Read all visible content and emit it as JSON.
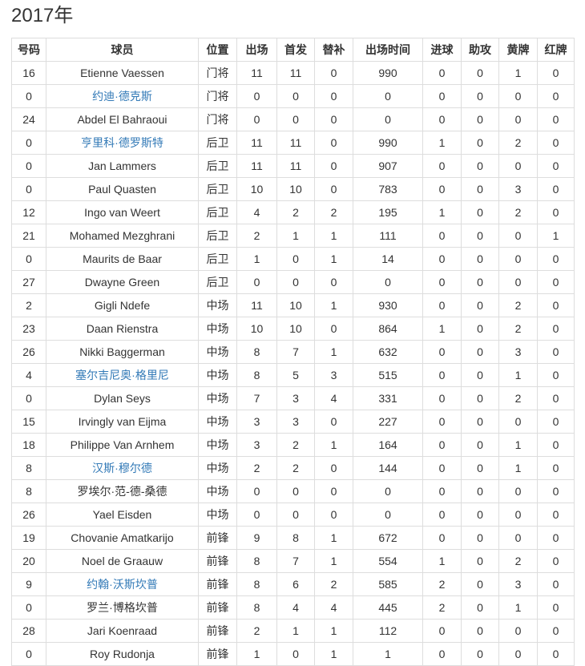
{
  "page": {
    "title": "2017年"
  },
  "colors": {
    "link": "#337ab7",
    "border": "#ddd",
    "text": "#333",
    "background": "#ffffff"
  },
  "table": {
    "headers": [
      "号码",
      "球员",
      "位置",
      "出场",
      "首发",
      "替补",
      "出场时间",
      "进球",
      "助攻",
      "黄牌",
      "红牌"
    ],
    "rows": [
      {
        "name_is_link": false,
        "cells": [
          "16",
          "Etienne Vaessen",
          "门将",
          "11",
          "11",
          "0",
          "990",
          "0",
          "0",
          "1",
          "0"
        ]
      },
      {
        "name_is_link": true,
        "cells": [
          "0",
          "约迪·德克斯",
          "门将",
          "0",
          "0",
          "0",
          "0",
          "0",
          "0",
          "0",
          "0"
        ]
      },
      {
        "name_is_link": false,
        "cells": [
          "24",
          "Abdel El Bahraoui",
          "门将",
          "0",
          "0",
          "0",
          "0",
          "0",
          "0",
          "0",
          "0"
        ]
      },
      {
        "name_is_link": true,
        "cells": [
          "0",
          "亨里科·德罗斯特",
          "后卫",
          "11",
          "11",
          "0",
          "990",
          "1",
          "0",
          "2",
          "0"
        ]
      },
      {
        "name_is_link": false,
        "cells": [
          "0",
          "Jan Lammers",
          "后卫",
          "11",
          "11",
          "0",
          "907",
          "0",
          "0",
          "0",
          "0"
        ]
      },
      {
        "name_is_link": false,
        "cells": [
          "0",
          "Paul Quasten",
          "后卫",
          "10",
          "10",
          "0",
          "783",
          "0",
          "0",
          "3",
          "0"
        ]
      },
      {
        "name_is_link": false,
        "cells": [
          "12",
          "Ingo van Weert",
          "后卫",
          "4",
          "2",
          "2",
          "195",
          "1",
          "0",
          "2",
          "0"
        ]
      },
      {
        "name_is_link": false,
        "cells": [
          "21",
          "Mohamed Mezghrani",
          "后卫",
          "2",
          "1",
          "1",
          "111",
          "0",
          "0",
          "0",
          "1"
        ]
      },
      {
        "name_is_link": false,
        "cells": [
          "0",
          "Maurits de Baar",
          "后卫",
          "1",
          "0",
          "1",
          "14",
          "0",
          "0",
          "0",
          "0"
        ]
      },
      {
        "name_is_link": false,
        "cells": [
          "27",
          "Dwayne Green",
          "后卫",
          "0",
          "0",
          "0",
          "0",
          "0",
          "0",
          "0",
          "0"
        ]
      },
      {
        "name_is_link": false,
        "cells": [
          "2",
          "Gigli Ndefe",
          "中场",
          "11",
          "10",
          "1",
          "930",
          "0",
          "0",
          "2",
          "0"
        ]
      },
      {
        "name_is_link": false,
        "cells": [
          "23",
          "Daan Rienstra",
          "中场",
          "10",
          "10",
          "0",
          "864",
          "1",
          "0",
          "2",
          "0"
        ]
      },
      {
        "name_is_link": false,
        "cells": [
          "26",
          "Nikki Baggerman",
          "中场",
          "8",
          "7",
          "1",
          "632",
          "0",
          "0",
          "3",
          "0"
        ]
      },
      {
        "name_is_link": true,
        "cells": [
          "4",
          "塞尔吉尼奥·格里尼",
          "中场",
          "8",
          "5",
          "3",
          "515",
          "0",
          "0",
          "1",
          "0"
        ]
      },
      {
        "name_is_link": false,
        "cells": [
          "0",
          "Dylan Seys",
          "中场",
          "7",
          "3",
          "4",
          "331",
          "0",
          "0",
          "2",
          "0"
        ]
      },
      {
        "name_is_link": false,
        "cells": [
          "15",
          "Irvingly van Eijma",
          "中场",
          "3",
          "3",
          "0",
          "227",
          "0",
          "0",
          "0",
          "0"
        ]
      },
      {
        "name_is_link": false,
        "cells": [
          "18",
          "Philippe Van Arnhem",
          "中场",
          "3",
          "2",
          "1",
          "164",
          "0",
          "0",
          "1",
          "0"
        ]
      },
      {
        "name_is_link": true,
        "cells": [
          "8",
          "汉斯·穆尔德",
          "中场",
          "2",
          "2",
          "0",
          "144",
          "0",
          "0",
          "1",
          "0"
        ]
      },
      {
        "name_is_link": false,
        "cells": [
          "8",
          "罗埃尔·范-德-桑德",
          "中场",
          "0",
          "0",
          "0",
          "0",
          "0",
          "0",
          "0",
          "0"
        ]
      },
      {
        "name_is_link": false,
        "cells": [
          "26",
          "Yael Eisden",
          "中场",
          "0",
          "0",
          "0",
          "0",
          "0",
          "0",
          "0",
          "0"
        ]
      },
      {
        "name_is_link": false,
        "cells": [
          "19",
          "Chovanie Amatkarijo",
          "前锋",
          "9",
          "8",
          "1",
          "672",
          "0",
          "0",
          "0",
          "0"
        ]
      },
      {
        "name_is_link": false,
        "cells": [
          "20",
          "Noel de Graauw",
          "前锋",
          "8",
          "7",
          "1",
          "554",
          "1",
          "0",
          "2",
          "0"
        ]
      },
      {
        "name_is_link": true,
        "cells": [
          "9",
          "约翰·沃斯坎普",
          "前锋",
          "8",
          "6",
          "2",
          "585",
          "2",
          "0",
          "3",
          "0"
        ]
      },
      {
        "name_is_link": false,
        "cells": [
          "0",
          "罗兰·博格坎普",
          "前锋",
          "8",
          "4",
          "4",
          "445",
          "2",
          "0",
          "1",
          "0"
        ]
      },
      {
        "name_is_link": false,
        "cells": [
          "28",
          "Jari Koenraad",
          "前锋",
          "2",
          "1",
          "1",
          "112",
          "0",
          "0",
          "0",
          "0"
        ]
      },
      {
        "name_is_link": false,
        "cells": [
          "0",
          "Roy Rudonja",
          "前锋",
          "1",
          "0",
          "1",
          "1",
          "0",
          "0",
          "0",
          "0"
        ]
      }
    ]
  }
}
